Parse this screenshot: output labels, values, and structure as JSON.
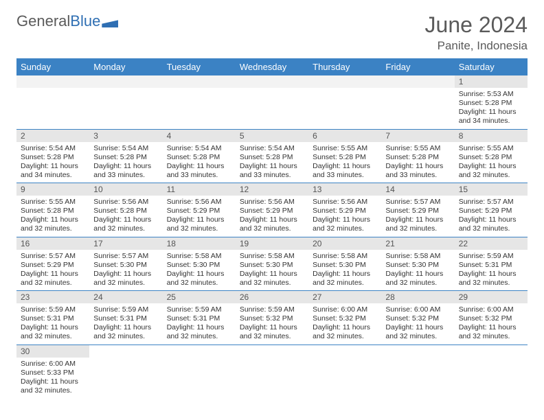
{
  "brand": {
    "part1": "General",
    "part2": "Blue"
  },
  "title": "June 2024",
  "location": "Panite, Indonesia",
  "colors": {
    "header_bg": "#3b82c4",
    "header_fg": "#ffffff",
    "daynum_bg": "#e6e6e6",
    "text": "#333333",
    "rule": "#3b82c4"
  },
  "weekdays": [
    "Sunday",
    "Monday",
    "Tuesday",
    "Wednesday",
    "Thursday",
    "Friday",
    "Saturday"
  ],
  "weeks": [
    [
      null,
      null,
      null,
      null,
      null,
      null,
      {
        "n": "1",
        "rise": "Sunrise: 5:53 AM",
        "set": "Sunset: 5:28 PM",
        "d1": "Daylight: 11 hours",
        "d2": "and 34 minutes."
      }
    ],
    [
      {
        "n": "2",
        "rise": "Sunrise: 5:54 AM",
        "set": "Sunset: 5:28 PM",
        "d1": "Daylight: 11 hours",
        "d2": "and 34 minutes."
      },
      {
        "n": "3",
        "rise": "Sunrise: 5:54 AM",
        "set": "Sunset: 5:28 PM",
        "d1": "Daylight: 11 hours",
        "d2": "and 33 minutes."
      },
      {
        "n": "4",
        "rise": "Sunrise: 5:54 AM",
        "set": "Sunset: 5:28 PM",
        "d1": "Daylight: 11 hours",
        "d2": "and 33 minutes."
      },
      {
        "n": "5",
        "rise": "Sunrise: 5:54 AM",
        "set": "Sunset: 5:28 PM",
        "d1": "Daylight: 11 hours",
        "d2": "and 33 minutes."
      },
      {
        "n": "6",
        "rise": "Sunrise: 5:55 AM",
        "set": "Sunset: 5:28 PM",
        "d1": "Daylight: 11 hours",
        "d2": "and 33 minutes."
      },
      {
        "n": "7",
        "rise": "Sunrise: 5:55 AM",
        "set": "Sunset: 5:28 PM",
        "d1": "Daylight: 11 hours",
        "d2": "and 33 minutes."
      },
      {
        "n": "8",
        "rise": "Sunrise: 5:55 AM",
        "set": "Sunset: 5:28 PM",
        "d1": "Daylight: 11 hours",
        "d2": "and 32 minutes."
      }
    ],
    [
      {
        "n": "9",
        "rise": "Sunrise: 5:55 AM",
        "set": "Sunset: 5:28 PM",
        "d1": "Daylight: 11 hours",
        "d2": "and 32 minutes."
      },
      {
        "n": "10",
        "rise": "Sunrise: 5:56 AM",
        "set": "Sunset: 5:28 PM",
        "d1": "Daylight: 11 hours",
        "d2": "and 32 minutes."
      },
      {
        "n": "11",
        "rise": "Sunrise: 5:56 AM",
        "set": "Sunset: 5:29 PM",
        "d1": "Daylight: 11 hours",
        "d2": "and 32 minutes."
      },
      {
        "n": "12",
        "rise": "Sunrise: 5:56 AM",
        "set": "Sunset: 5:29 PM",
        "d1": "Daylight: 11 hours",
        "d2": "and 32 minutes."
      },
      {
        "n": "13",
        "rise": "Sunrise: 5:56 AM",
        "set": "Sunset: 5:29 PM",
        "d1": "Daylight: 11 hours",
        "d2": "and 32 minutes."
      },
      {
        "n": "14",
        "rise": "Sunrise: 5:57 AM",
        "set": "Sunset: 5:29 PM",
        "d1": "Daylight: 11 hours",
        "d2": "and 32 minutes."
      },
      {
        "n": "15",
        "rise": "Sunrise: 5:57 AM",
        "set": "Sunset: 5:29 PM",
        "d1": "Daylight: 11 hours",
        "d2": "and 32 minutes."
      }
    ],
    [
      {
        "n": "16",
        "rise": "Sunrise: 5:57 AM",
        "set": "Sunset: 5:29 PM",
        "d1": "Daylight: 11 hours",
        "d2": "and 32 minutes."
      },
      {
        "n": "17",
        "rise": "Sunrise: 5:57 AM",
        "set": "Sunset: 5:30 PM",
        "d1": "Daylight: 11 hours",
        "d2": "and 32 minutes."
      },
      {
        "n": "18",
        "rise": "Sunrise: 5:58 AM",
        "set": "Sunset: 5:30 PM",
        "d1": "Daylight: 11 hours",
        "d2": "and 32 minutes."
      },
      {
        "n": "19",
        "rise": "Sunrise: 5:58 AM",
        "set": "Sunset: 5:30 PM",
        "d1": "Daylight: 11 hours",
        "d2": "and 32 minutes."
      },
      {
        "n": "20",
        "rise": "Sunrise: 5:58 AM",
        "set": "Sunset: 5:30 PM",
        "d1": "Daylight: 11 hours",
        "d2": "and 32 minutes."
      },
      {
        "n": "21",
        "rise": "Sunrise: 5:58 AM",
        "set": "Sunset: 5:30 PM",
        "d1": "Daylight: 11 hours",
        "d2": "and 32 minutes."
      },
      {
        "n": "22",
        "rise": "Sunrise: 5:59 AM",
        "set": "Sunset: 5:31 PM",
        "d1": "Daylight: 11 hours",
        "d2": "and 32 minutes."
      }
    ],
    [
      {
        "n": "23",
        "rise": "Sunrise: 5:59 AM",
        "set": "Sunset: 5:31 PM",
        "d1": "Daylight: 11 hours",
        "d2": "and 32 minutes."
      },
      {
        "n": "24",
        "rise": "Sunrise: 5:59 AM",
        "set": "Sunset: 5:31 PM",
        "d1": "Daylight: 11 hours",
        "d2": "and 32 minutes."
      },
      {
        "n": "25",
        "rise": "Sunrise: 5:59 AM",
        "set": "Sunset: 5:31 PM",
        "d1": "Daylight: 11 hours",
        "d2": "and 32 minutes."
      },
      {
        "n": "26",
        "rise": "Sunrise: 5:59 AM",
        "set": "Sunset: 5:32 PM",
        "d1": "Daylight: 11 hours",
        "d2": "and 32 minutes."
      },
      {
        "n": "27",
        "rise": "Sunrise: 6:00 AM",
        "set": "Sunset: 5:32 PM",
        "d1": "Daylight: 11 hours",
        "d2": "and 32 minutes."
      },
      {
        "n": "28",
        "rise": "Sunrise: 6:00 AM",
        "set": "Sunset: 5:32 PM",
        "d1": "Daylight: 11 hours",
        "d2": "and 32 minutes."
      },
      {
        "n": "29",
        "rise": "Sunrise: 6:00 AM",
        "set": "Sunset: 5:32 PM",
        "d1": "Daylight: 11 hours",
        "d2": "and 32 minutes."
      }
    ],
    [
      {
        "n": "30",
        "rise": "Sunrise: 6:00 AM",
        "set": "Sunset: 5:33 PM",
        "d1": "Daylight: 11 hours",
        "d2": "and 32 minutes."
      },
      null,
      null,
      null,
      null,
      null,
      null
    ]
  ]
}
